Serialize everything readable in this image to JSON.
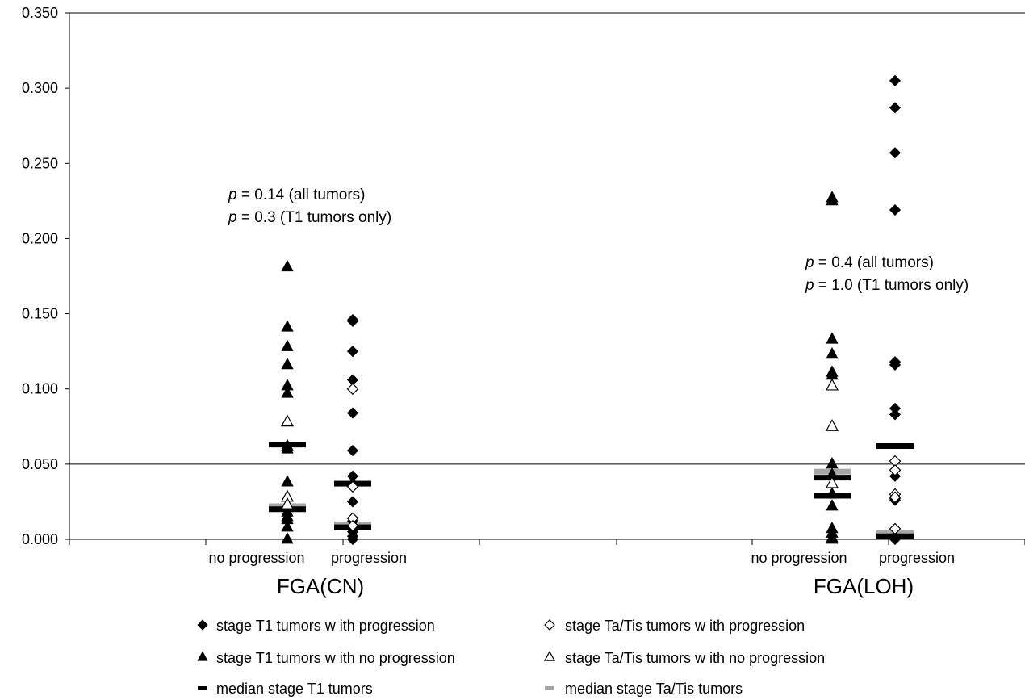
{
  "chart_data": {
    "type": "scatter",
    "y_ticks": [
      "0.000",
      "0.050",
      "0.100",
      "0.150",
      "0.200",
      "0.250",
      "0.300",
      "0.350"
    ],
    "ylim": [
      0,
      0.35
    ],
    "reference_line_y": 0.05,
    "groups": [
      {
        "label": "FGA(CN)",
        "categories": [
          "no progression",
          "progression"
        ],
        "annotation": [
          {
            "p": "p",
            "rest": " = 0.14 (all tumors)"
          },
          {
            "p": "p",
            "rest": " = 0.3 (T1 tumors only)"
          }
        ]
      },
      {
        "label": "FGA(LOH)",
        "categories": [
          "no progression",
          "progression"
        ],
        "annotation": [
          {
            "p": "p",
            "rest": " = 0.4 (all tumors)"
          },
          {
            "p": "p",
            "rest": " = 1.0 (T1 tumors only)"
          }
        ]
      }
    ],
    "series": [
      {
        "name": "stage T1 tumors w ith progression",
        "marker": "filled-diamond",
        "points": [
          {
            "g": 0,
            "c": 1,
            "y": 0.146
          },
          {
            "g": 0,
            "c": 1,
            "y": 0.145
          },
          {
            "g": 0,
            "c": 1,
            "y": 0.125
          },
          {
            "g": 0,
            "c": 1,
            "y": 0.106
          },
          {
            "g": 0,
            "c": 1,
            "y": 0.084
          },
          {
            "g": 0,
            "c": 1,
            "y": 0.059
          },
          {
            "g": 0,
            "c": 1,
            "y": 0.042
          },
          {
            "g": 0,
            "c": 1,
            "y": 0.037
          },
          {
            "g": 0,
            "c": 1,
            "y": 0.025
          },
          {
            "g": 0,
            "c": 1,
            "y": 0.012
          },
          {
            "g": 0,
            "c": 1,
            "y": 0.005
          },
          {
            "g": 0,
            "c": 1,
            "y": 0.002
          },
          {
            "g": 0,
            "c": 1,
            "y": 0.0
          },
          {
            "g": 1,
            "c": 1,
            "y": 0.305
          },
          {
            "g": 1,
            "c": 1,
            "y": 0.287
          },
          {
            "g": 1,
            "c": 1,
            "y": 0.257
          },
          {
            "g": 1,
            "c": 1,
            "y": 0.219
          },
          {
            "g": 1,
            "c": 1,
            "y": 0.118
          },
          {
            "g": 1,
            "c": 1,
            "y": 0.116
          },
          {
            "g": 1,
            "c": 1,
            "y": 0.087
          },
          {
            "g": 1,
            "c": 1,
            "y": 0.083
          },
          {
            "g": 1,
            "c": 1,
            "y": 0.042
          },
          {
            "g": 1,
            "c": 1,
            "y": 0.027
          },
          {
            "g": 1,
            "c": 1,
            "y": 0.026
          },
          {
            "g": 1,
            "c": 1,
            "y": 0.002
          },
          {
            "g": 1,
            "c": 1,
            "y": 0.0
          }
        ]
      },
      {
        "name": "stage T1 tumors w ith no progression",
        "marker": "filled-triangle",
        "points": [
          {
            "g": 0,
            "c": 0,
            "y": 0.181
          },
          {
            "g": 0,
            "c": 0,
            "y": 0.141
          },
          {
            "g": 0,
            "c": 0,
            "y": 0.128
          },
          {
            "g": 0,
            "c": 0,
            "y": 0.116
          },
          {
            "g": 0,
            "c": 0,
            "y": 0.102
          },
          {
            "g": 0,
            "c": 0,
            "y": 0.097
          },
          {
            "g": 0,
            "c": 0,
            "y": 0.062
          },
          {
            "g": 0,
            "c": 0,
            "y": 0.06
          },
          {
            "g": 0,
            "c": 0,
            "y": 0.038
          },
          {
            "g": 0,
            "c": 0,
            "y": 0.021
          },
          {
            "g": 0,
            "c": 0,
            "y": 0.018
          },
          {
            "g": 0,
            "c": 0,
            "y": 0.015
          },
          {
            "g": 0,
            "c": 0,
            "y": 0.013
          },
          {
            "g": 0,
            "c": 0,
            "y": 0.008
          },
          {
            "g": 0,
            "c": 0,
            "y": 0.0
          },
          {
            "g": 1,
            "c": 0,
            "y": 0.227
          },
          {
            "g": 1,
            "c": 0,
            "y": 0.225
          },
          {
            "g": 1,
            "c": 0,
            "y": 0.133
          },
          {
            "g": 1,
            "c": 0,
            "y": 0.123
          },
          {
            "g": 1,
            "c": 0,
            "y": 0.111
          },
          {
            "g": 1,
            "c": 0,
            "y": 0.109
          },
          {
            "g": 1,
            "c": 0,
            "y": 0.05
          },
          {
            "g": 1,
            "c": 0,
            "y": 0.043
          },
          {
            "g": 1,
            "c": 0,
            "y": 0.03
          },
          {
            "g": 1,
            "c": 0,
            "y": 0.022
          },
          {
            "g": 1,
            "c": 0,
            "y": 0.007
          },
          {
            "g": 1,
            "c": 0,
            "y": 0.004
          },
          {
            "g": 1,
            "c": 0,
            "y": 0.001
          },
          {
            "g": 1,
            "c": 0,
            "y": 0.0
          }
        ]
      },
      {
        "name": "median stage T1 tumors",
        "marker": "black-dash",
        "points": [
          {
            "g": 0,
            "c": 0,
            "y": 0.063
          },
          {
            "g": 0,
            "c": 0,
            "y": 0.02
          },
          {
            "g": 0,
            "c": 1,
            "y": 0.037
          },
          {
            "g": 0,
            "c": 1,
            "y": 0.008
          },
          {
            "g": 1,
            "c": 0,
            "y": 0.041
          },
          {
            "g": 1,
            "c": 0,
            "y": 0.029
          },
          {
            "g": 1,
            "c": 1,
            "y": 0.062
          },
          {
            "g": 1,
            "c": 1,
            "y": 0.002
          }
        ]
      },
      {
        "name": "stage Ta/Tis tumors w ith progression",
        "marker": "open-diamond",
        "points": [
          {
            "g": 0,
            "c": 1,
            "y": 0.1
          },
          {
            "g": 0,
            "c": 1,
            "y": 0.035
          },
          {
            "g": 0,
            "c": 1,
            "y": 0.014
          },
          {
            "g": 0,
            "c": 1,
            "y": 0.009
          },
          {
            "g": 1,
            "c": 1,
            "y": 0.052
          },
          {
            "g": 1,
            "c": 1,
            "y": 0.046
          },
          {
            "g": 1,
            "c": 1,
            "y": 0.03
          },
          {
            "g": 1,
            "c": 1,
            "y": 0.028
          },
          {
            "g": 1,
            "c": 1,
            "y": 0.007
          }
        ]
      },
      {
        "name": "stage Ta/Tis tumors w ith no progression",
        "marker": "open-triangle",
        "points": [
          {
            "g": 0,
            "c": 0,
            "y": 0.078
          },
          {
            "g": 0,
            "c": 0,
            "y": 0.028
          },
          {
            "g": 0,
            "c": 0,
            "y": 0.023
          },
          {
            "g": 1,
            "c": 0,
            "y": 0.102
          },
          {
            "g": 1,
            "c": 0,
            "y": 0.075
          },
          {
            "g": 1,
            "c": 0,
            "y": 0.037
          }
        ]
      },
      {
        "name": "median stage Ta/Tis tumors",
        "marker": "gray-dash",
        "points": [
          {
            "g": 0,
            "c": 0,
            "y": 0.022
          },
          {
            "g": 0,
            "c": 1,
            "y": 0.01
          },
          {
            "g": 1,
            "c": 0,
            "y": 0.045
          },
          {
            "g": 1,
            "c": 1,
            "y": 0.004
          }
        ]
      }
    ],
    "legend_order": [
      0,
      3,
      1,
      4,
      2,
      5
    ],
    "colors": {
      "axis": "#000000",
      "black_median": "#000000",
      "gray_median": "#a6a6a6"
    }
  }
}
